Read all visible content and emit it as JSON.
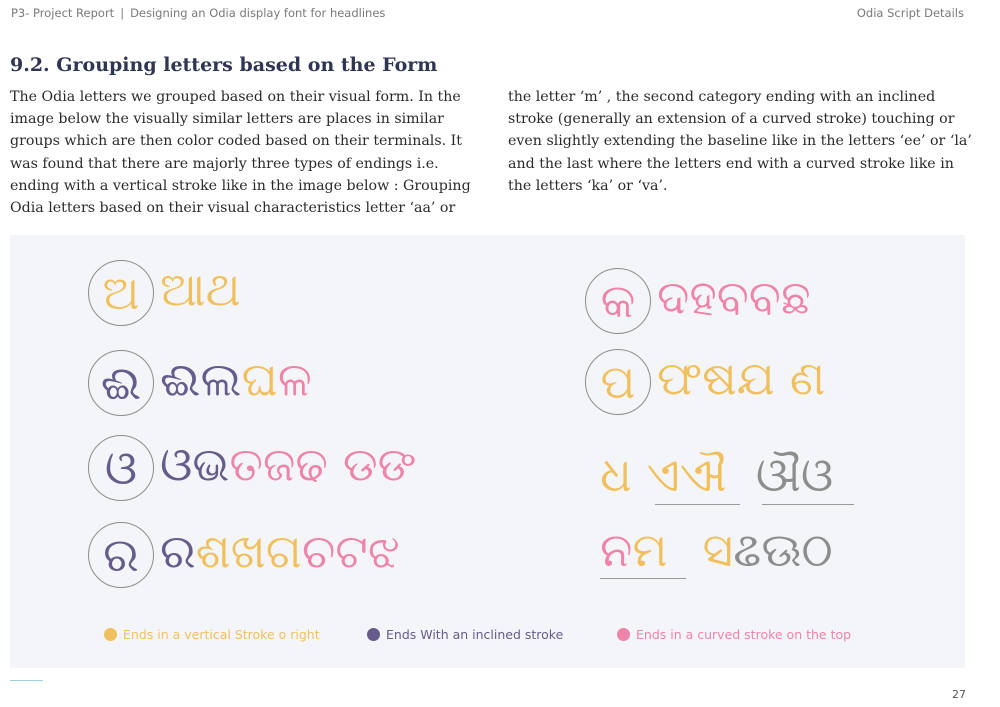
{
  "header": {
    "project": "P3- Project Report",
    "separator": "|",
    "subtitle": "Designing an Odia display font for headlines",
    "section": "Odia Script Details"
  },
  "heading": "9.2. Grouping letters based on the Form",
  "paragraph_left": "The Odia letters we grouped based on their visual form. In the image below the visually similar letters are places in similar groups which are then color coded based on their terminals. It was found that there are majorly three types of endings i.e. ending with a vertical stroke like in the image below : Grouping Odia letters based on their visual characteristics letter ‘aa’ or",
  "paragraph_right": "the letter ‘m’ , the second category ending with an inclined stroke (generally an extension of a curved stroke) touching or even slightly extending the baseline like in the letters ‘ee’ or ‘la’ and the last where the letters end with a curved stroke like in the letters ‘ka’ or ‘va’.",
  "figure": {
    "left_rows": [
      {
        "base": "ଅ",
        "yellow": "ଆଥ",
        "purple": "",
        "pink": "",
        "purple_tail": ""
      },
      {
        "base": "ଈ",
        "purple": "ଈଲ",
        "yellow": "ଘ",
        "pink": "ଳ"
      },
      {
        "base": "ଓ",
        "purple": "ଓଭ",
        "pink": "ତଜଢ ଡଙ"
      },
      {
        "base": "ର",
        "purple": "ର",
        "yellow": "ଶଖଗ",
        "pink": "ଚଟଝ"
      }
    ],
    "right_rows": [
      {
        "base": "କ",
        "pink": "ଦହବବଛ"
      },
      {
        "base": "ପ",
        "yellow": "ଫଷଯ ଣ"
      }
    ],
    "loose_rows": [
      {
        "yellow": "ଧ ଏଐ",
        "grey": "ଔଓ"
      },
      {
        "pink": "ନ",
        "yellow_m": "ମ",
        "yellow": "ସ",
        "grey": "ଌଊଠ"
      }
    ]
  },
  "legend": [
    {
      "label": "Ends in a vertical Stroke o right",
      "color": "#f1c05e"
    },
    {
      "label": "Ends With an inclined stroke",
      "color": "#655c8c"
    },
    {
      "label": "Ends in a curved stroke on the top",
      "color": "#ee84a8"
    }
  ],
  "page_number": "27"
}
